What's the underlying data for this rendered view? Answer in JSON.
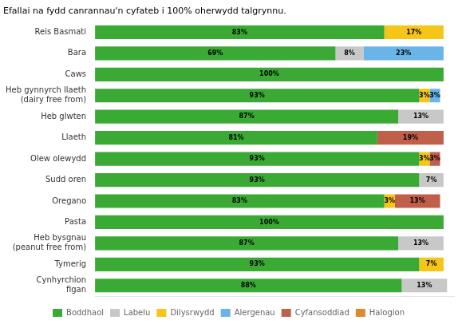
{
  "chart_data": {
    "type": "bar",
    "orientation": "horizontal",
    "stacked": true,
    "title": "Efallai na fydd canrannau'n cyfateb i 100% oherwydd talgrynnu.",
    "categories": [
      "Reis Basmati",
      "Bara",
      "Caws",
      "Heb gynnyrch llaeth\n(dairy free from)",
      "Heb glwten",
      "Llaeth",
      "Olew olewydd",
      "Sudd oren",
      "Oregano",
      "Pasta",
      "Heb bysgnau\n(peanut free from)",
      "Tymerig",
      "Cynhyrchion\nfigan"
    ],
    "series": [
      {
        "name": "Boddhaol",
        "color": "#3aaa35",
        "values": [
          83,
          69,
          100,
          93,
          87,
          81,
          93,
          93,
          83,
          100,
          87,
          93,
          88
        ],
        "value_labels": [
          "83%",
          "69%",
          "100%",
          "93%",
          "87%",
          "81%",
          "93%",
          "93%",
          "83%",
          "100%",
          "87%",
          "93%",
          "88%"
        ]
      },
      {
        "name": "Labelu",
        "color": "#c8c8c8",
        "values": [
          0,
          8,
          0,
          0,
          13,
          0,
          0,
          7,
          0,
          0,
          13,
          0,
          13
        ],
        "value_labels": [
          null,
          "8%",
          null,
          null,
          "13%",
          null,
          null,
          "7%",
          null,
          null,
          "13%",
          null,
          "13%"
        ]
      },
      {
        "name": "Dilysrwydd",
        "color": "#f5c518",
        "values": [
          17,
          0,
          0,
          3,
          0,
          0,
          3,
          0,
          3,
          0,
          0,
          7,
          0
        ],
        "value_labels": [
          "17%",
          null,
          null,
          "3%",
          null,
          null,
          "3%",
          null,
          "3%",
          null,
          null,
          "7%",
          null
        ]
      },
      {
        "name": "Alergenau",
        "color": "#6ab4e8",
        "values": [
          0,
          23,
          0,
          3,
          0,
          0,
          0,
          0,
          0,
          0,
          0,
          0,
          0
        ],
        "value_labels": [
          null,
          "23%",
          null,
          "3%",
          null,
          null,
          null,
          null,
          null,
          null,
          null,
          null,
          null
        ]
      },
      {
        "name": "Cyfansoddiad",
        "color": "#c0604a",
        "values": [
          0,
          0,
          0,
          0,
          0,
          19,
          3,
          0,
          13,
          0,
          0,
          0,
          0
        ],
        "value_labels": [
          null,
          null,
          null,
          null,
          null,
          "19%",
          "3%",
          null,
          "13%",
          null,
          null,
          null,
          null
        ]
      },
      {
        "name": "Halogion",
        "color": "#e08830",
        "values": [
          0,
          0,
          0,
          0,
          0,
          0,
          0,
          0,
          0,
          0,
          0,
          0,
          0
        ],
        "value_labels": [
          null,
          null,
          null,
          null,
          null,
          null,
          null,
          null,
          null,
          null,
          null,
          null,
          null
        ]
      }
    ],
    "xlim": [
      0,
      103
    ],
    "xticks": [],
    "tick_labels": "y",
    "data_labels": true,
    "grid": false,
    "legend": "bottom"
  }
}
